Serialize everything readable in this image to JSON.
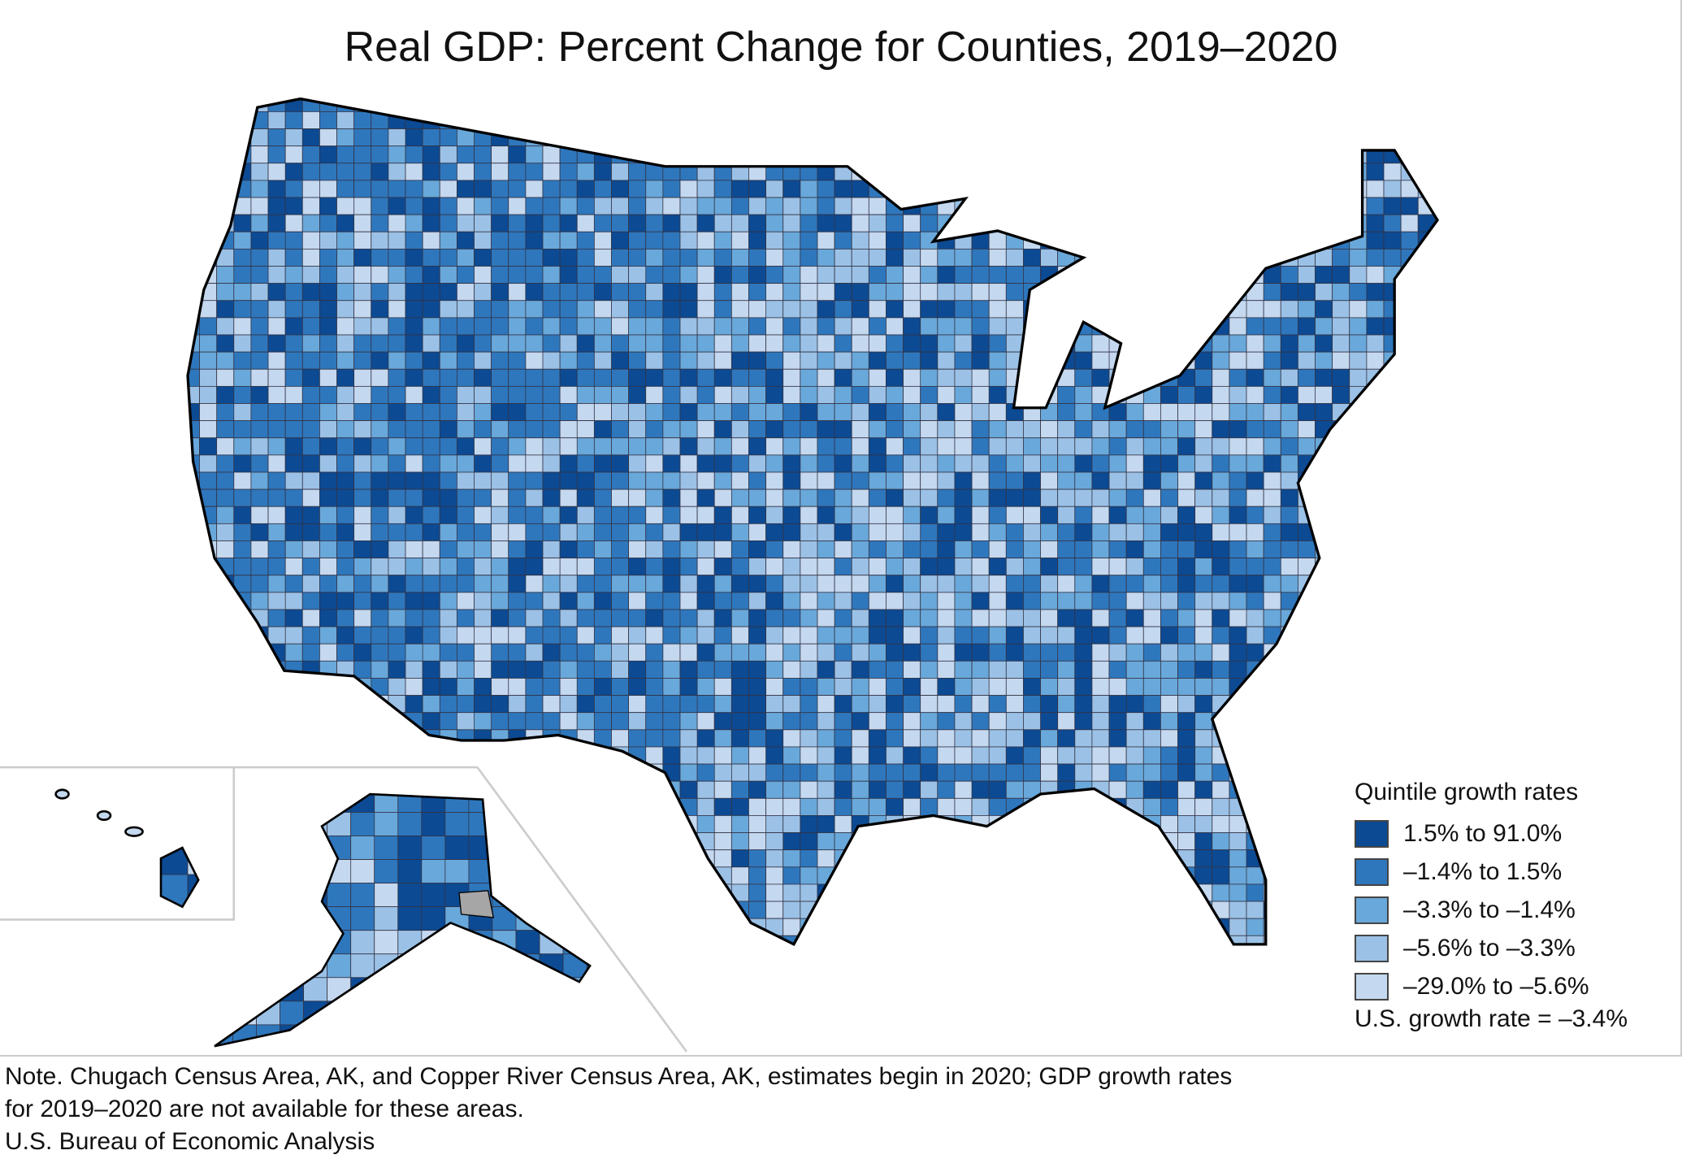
{
  "title": "Real GDP: Percent Change for Counties, 2019–2020",
  "legend": {
    "title": "Quintile growth rates",
    "items": [
      {
        "label": "1.5% to 91.0%",
        "color": "#0c4a93"
      },
      {
        "label": "–1.4% to 1.5%",
        "color": "#2e77bd"
      },
      {
        "label": "–3.3% to –1.4%",
        "color": "#69a8da"
      },
      {
        "label": "–5.6% to –3.3%",
        "color": "#9bc1e6"
      },
      {
        "label": "–29.0% to –5.6%",
        "color": "#c4d8ef"
      }
    ],
    "us_rate": "U.S. growth rate = –3.4%"
  },
  "na_color": "#a6a6a6",
  "note": {
    "line1": "Note. Chugach Census Area, AK, and Copper River Census Area, AK, estimates begin in 2020; GDP growth rates",
    "line2": "for 2019–2020 are not available for these areas.",
    "source": "U.S. Bureau of Economic Analysis"
  }
}
